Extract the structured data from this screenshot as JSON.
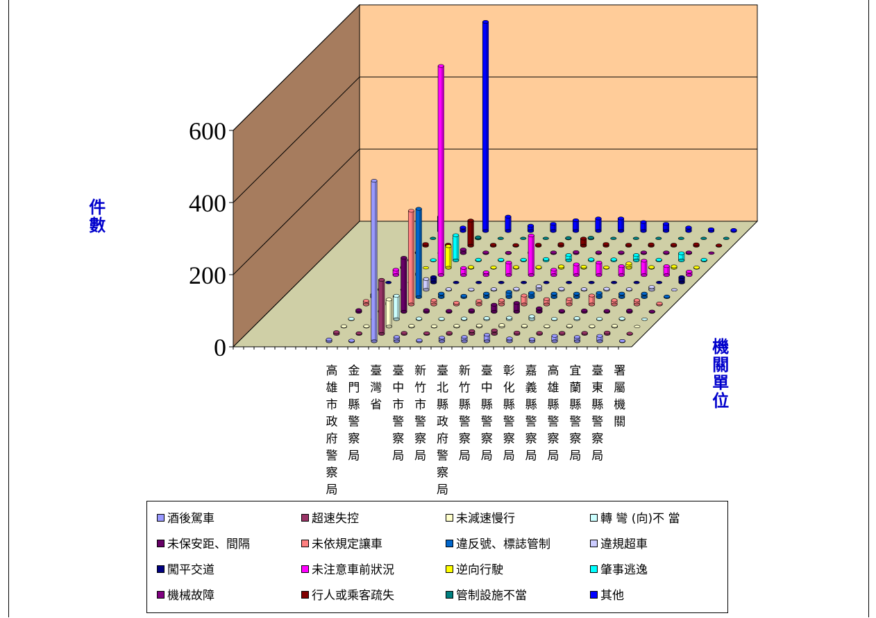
{
  "chart_data": {
    "type": "bar",
    "style": "3d-column",
    "ylabel": "件數",
    "xlabel": "機關單位",
    "ylim": [
      0,
      600
    ],
    "yticks": [
      "0",
      "200",
      "400",
      "600"
    ],
    "grid": true,
    "legend_position": "bottom",
    "categories": [
      "高雄市政府警察局",
      "金門縣警察局",
      "臺灣省",
      "臺中市警察局",
      "新竹市警察局",
      "臺北縣政府警察局",
      "新竹縣警察局",
      "臺中縣警察局",
      "彰化縣警察局",
      "嘉義縣警察局",
      "高雄縣警察局",
      "宜蘭縣警察局",
      "臺東縣警察局",
      "署屬機關"
    ],
    "series": [
      {
        "name": "酒後駕車",
        "color": "#9999ff",
        "values": [
          5,
          2,
          445,
          12,
          3,
          10,
          12,
          18,
          8,
          6,
          15,
          12,
          15,
          1
        ]
      },
      {
        "name": "超速失控",
        "color": "#993366",
        "values": [
          5,
          2,
          150,
          3,
          2,
          3,
          8,
          10,
          4,
          3,
          3,
          3,
          4,
          1
        ]
      },
      {
        "name": "未減速慢行",
        "color": "#ffffcc",
        "values": [
          1,
          1,
          75,
          2,
          1,
          2,
          3,
          4,
          2,
          1,
          2,
          1,
          2,
          0
        ]
      },
      {
        "name": "轉 彎 (向)不 當",
        "color": "#ccffff",
        "values": [
          1,
          0,
          65,
          2,
          1,
          2,
          3,
          4,
          8,
          1,
          3,
          1,
          2,
          0
        ]
      },
      {
        "name": "未保安距、間隔",
        "color": "#660066",
        "values": [
          5,
          3,
          150,
          5,
          3,
          5,
          20,
          25,
          10,
          3,
          4,
          3,
          4,
          1
        ]
      },
      {
        "name": "未依規定讓車",
        "color": "#ff8080",
        "values": [
          10,
          5,
          260,
          12,
          5,
          10,
          12,
          25,
          15,
          15,
          25,
          12,
          12,
          3
        ]
      },
      {
        "name": "違反號、標誌管制",
        "color": "#0066cc",
        "values": [
          8,
          3,
          245,
          10,
          4,
          10,
          15,
          12,
          10,
          10,
          12,
          10,
          10,
          2
        ]
      },
      {
        "name": "違規超車",
        "color": "#ccccff",
        "values": [
          2,
          1,
          30,
          2,
          1,
          2,
          3,
          10,
          3,
          2,
          3,
          2,
          8,
          0
        ]
      },
      {
        "name": "闖平交道",
        "color": "#000080",
        "values": [
          0,
          0,
          15,
          0,
          0,
          0,
          0,
          0,
          0,
          0,
          0,
          0,
          0,
          15
        ]
      },
      {
        "name": "未注意車前狀況",
        "color": "#ff00ff",
        "values": [
          15,
          5,
          580,
          20,
          8,
          35,
          110,
          15,
          30,
          35,
          25,
          40,
          25,
          10
        ]
      },
      {
        "name": "逆向行駛",
        "color": "#ffff00",
        "values": [
          2,
          0,
          60,
          2,
          1,
          2,
          2,
          4,
          3,
          1,
          12,
          2,
          4,
          1
        ]
      },
      {
        "name": "肇事逃逸",
        "color": "#00ffff",
        "values": [
          2,
          1,
          70,
          2,
          2,
          2,
          4,
          15,
          3,
          3,
          15,
          2,
          20,
          2
        ]
      },
      {
        "name": "機械故障",
        "color": "#800080",
        "values": [
          2,
          0,
          10,
          2,
          1,
          2,
          2,
          3,
          2,
          2,
          2,
          2,
          2,
          0
        ]
      },
      {
        "name": "行人或乘客疏失",
        "color": "#800000",
        "values": [
          5,
          3,
          70,
          3,
          2,
          3,
          5,
          20,
          5,
          3,
          4,
          3,
          4,
          1
        ]
      },
      {
        "name": "管制設施不當",
        "color": "#008080",
        "values": [
          0,
          0,
          3,
          0,
          0,
          0,
          1,
          2,
          0,
          0,
          0,
          0,
          0,
          0
        ]
      },
      {
        "name": "其他",
        "color": "#0000ff",
        "values": [
          40,
          10,
          580,
          40,
          15,
          20,
          30,
          35,
          35,
          25,
          20,
          10,
          5,
          3
        ]
      }
    ]
  }
}
